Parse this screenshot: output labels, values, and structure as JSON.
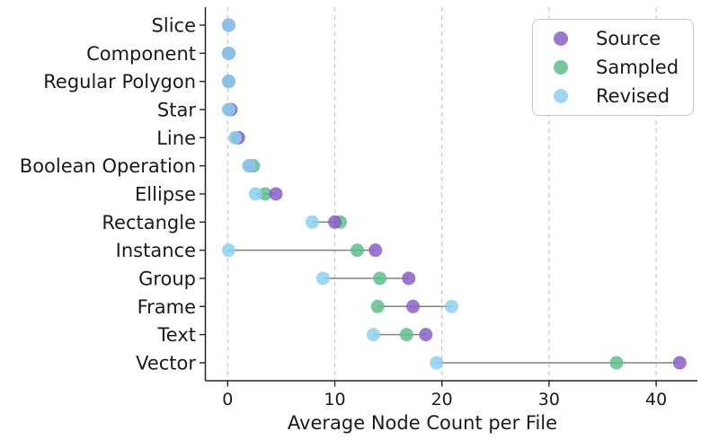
{
  "chart_data": {
    "type": "scatter",
    "variant": "dot-plot-lollipop",
    "title": "",
    "xlabel": "Average Node Count per File",
    "ylabel": "",
    "categories": [
      "Slice",
      "Component",
      "Regular Polygon",
      "Star",
      "Line",
      "Boolean Operation",
      "Ellipse",
      "Rectangle",
      "Instance",
      "Group",
      "Frame",
      "Text",
      "Vector"
    ],
    "series": [
      {
        "name": "Source",
        "color": "#8a5fc4",
        "values": [
          0.1,
          0.1,
          0.1,
          0.3,
          1.0,
          2.0,
          4.5,
          10.0,
          13.8,
          16.9,
          17.3,
          18.5,
          42.2
        ]
      },
      {
        "name": "Sampled",
        "color": "#62bd8e",
        "values": [
          0.1,
          0.1,
          0.1,
          0.1,
          0.8,
          2.4,
          3.5,
          10.5,
          12.1,
          14.2,
          14.0,
          16.7,
          36.3
        ]
      },
      {
        "name": "Revised",
        "color": "#8ed0ee",
        "values": [
          0.1,
          0.1,
          0.1,
          0.1,
          0.7,
          2.0,
          2.6,
          7.9,
          0.1,
          8.9,
          20.9,
          13.6,
          19.5
        ]
      }
    ],
    "draw_order": [
      "Sampled",
      "Source",
      "Revised"
    ],
    "x_ticks": [
      0,
      10,
      20,
      30,
      40
    ],
    "xlim": [
      -2.2,
      44
    ],
    "marker_opacity": 0.85,
    "marker_radius_px": 7.5,
    "connector_color": "#808080",
    "gridline_color": "#c9c9c9",
    "grid": "vertical-dashed",
    "legend_position": "upper-right",
    "axis_color": "#262626",
    "legend": {
      "items": [
        "Source",
        "Sampled",
        "Revised"
      ]
    }
  }
}
